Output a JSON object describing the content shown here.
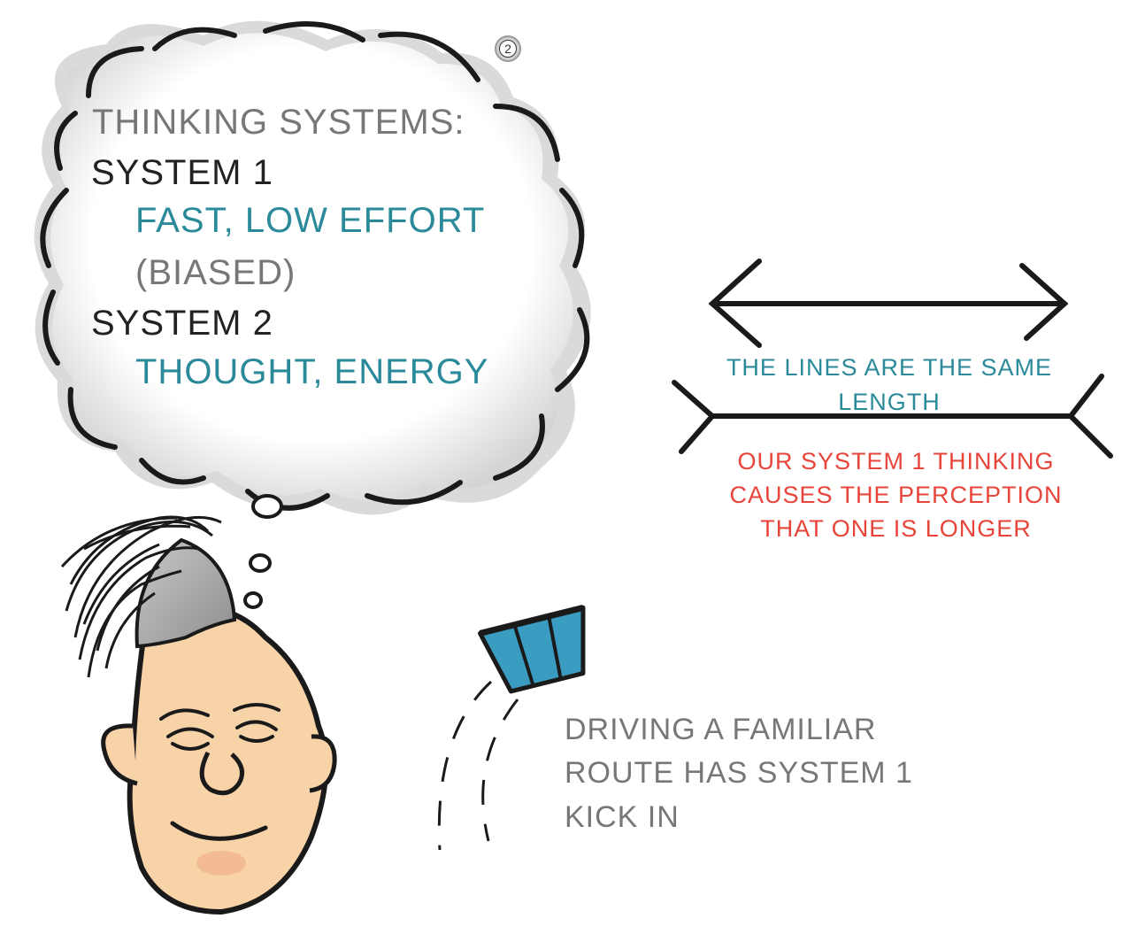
{
  "badge": {
    "number": "2"
  },
  "cloud": {
    "title": "THINKING SYSTEMS:",
    "system1": {
      "label": "SYSTEM 1",
      "desc": "FAST, LOW EFFORT",
      "note": "(BIASED)"
    },
    "system2": {
      "label": "SYSTEM 2",
      "desc": "THOUGHT, ENERGY"
    }
  },
  "illusion": {
    "caption_teal": "THE LINES ARE THE SAME LENGTH",
    "caption_red": "OUR SYSTEM 1 THINKING CAUSES THE PERCEPTION THAT ONE IS LONGER"
  },
  "driving": {
    "caption": "DRIVING A FAMILIAR ROUTE HAS SYSTEM 1 KICK IN"
  },
  "colors": {
    "teal": "#2b8a9a",
    "red": "#e8443a",
    "grey_text": "#777777",
    "skin": "#f8d3a8",
    "car_blue": "#3a9cc0"
  }
}
